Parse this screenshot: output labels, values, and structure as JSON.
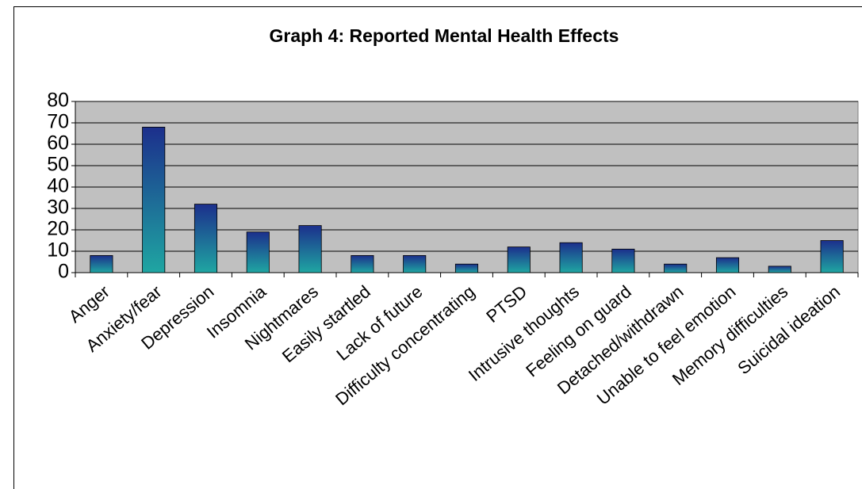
{
  "chart_data": {
    "type": "bar",
    "title": "Graph 4: Reported Mental Health Effects",
    "categories": [
      "Anger",
      "Anxiety/fear",
      "Depression",
      "Insomnia",
      "Nightmares",
      "Easily startled",
      "Lack of future",
      "Difficulty concentrating",
      "PTSD",
      "Intrusive thoughts",
      "Feeling on guard",
      "Detached/withdrawn",
      "Unable to feel emotion",
      "Memory difficulties",
      "Suicidal ideation"
    ],
    "values": [
      8,
      68,
      32,
      19,
      22,
      8,
      8,
      4,
      12,
      14,
      11,
      4,
      7,
      3,
      15
    ],
    "color": "#1c2f8c",
    "gradient_end": "#1fa6a2",
    "ylim": [
      0,
      80
    ],
    "yticks": [
      0,
      10,
      20,
      30,
      40,
      50,
      60,
      70,
      80
    ],
    "grid": true
  }
}
